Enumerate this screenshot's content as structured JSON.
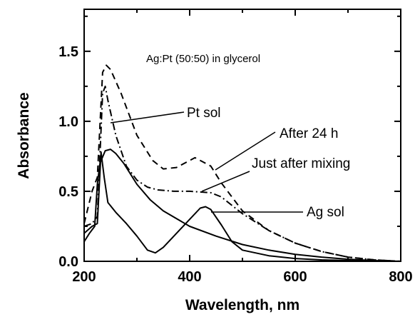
{
  "chart_data": {
    "type": "line",
    "title": "Ag:Pt (50:50) in glycerol",
    "xlabel": "Wavelength, nm",
    "ylabel": "Absorbance",
    "xlim": [
      200,
      800
    ],
    "ylim": [
      0,
      1.8
    ],
    "xticks": [
      "200",
      "400",
      "600",
      "800"
    ],
    "yticks": [
      "0.0",
      "0.5",
      "1.0",
      "1.5"
    ],
    "grid": false,
    "legend": "none",
    "series": [
      {
        "name": "Pt sol",
        "style": "solid",
        "x": [
          200,
          210,
          220,
          225,
          230,
          240,
          250,
          260,
          275,
          300,
          325,
          350,
          400,
          450,
          500,
          550,
          600,
          650,
          700,
          750,
          800
        ],
        "y": [
          0.14,
          0.2,
          0.25,
          0.55,
          0.7,
          0.79,
          0.8,
          0.77,
          0.7,
          0.55,
          0.44,
          0.36,
          0.25,
          0.18,
          0.12,
          0.08,
          0.05,
          0.03,
          0.015,
          0.005,
          0.0
        ]
      },
      {
        "name": "Ag sol",
        "style": "solid",
        "x": [
          200,
          215,
          225,
          232,
          238,
          245,
          260,
          280,
          300,
          320,
          335,
          350,
          375,
          400,
          420,
          430,
          440,
          460,
          480,
          500,
          550,
          600,
          650,
          700,
          750,
          800
        ],
        "y": [
          0.2,
          0.25,
          0.27,
          0.78,
          0.6,
          0.42,
          0.35,
          0.27,
          0.18,
          0.08,
          0.06,
          0.1,
          0.2,
          0.3,
          0.38,
          0.39,
          0.37,
          0.26,
          0.14,
          0.08,
          0.04,
          0.02,
          0.01,
          0.005,
          0.0,
          0.0
        ]
      },
      {
        "name": "After 24 h",
        "style": "dashed",
        "x": [
          200,
          215,
          225,
          235,
          242,
          250,
          270,
          300,
          330,
          350,
          375,
          400,
          410,
          420,
          440,
          460,
          480,
          500,
          550,
          600,
          650,
          700,
          750,
          800
        ],
        "y": [
          0.27,
          0.5,
          0.6,
          1.35,
          1.4,
          1.37,
          1.2,
          0.9,
          0.72,
          0.66,
          0.67,
          0.72,
          0.74,
          0.72,
          0.68,
          0.56,
          0.46,
          0.36,
          0.22,
          0.13,
          0.07,
          0.03,
          0.01,
          0.0
        ]
      },
      {
        "name": "Just after mixing",
        "style": "dashdot",
        "x": [
          200,
          215,
          225,
          235,
          240,
          245,
          260,
          280,
          300,
          320,
          340,
          370,
          400,
          440,
          460,
          480,
          500,
          550,
          600,
          650,
          700,
          750,
          800
        ],
        "y": [
          0.25,
          0.27,
          0.32,
          1.2,
          1.25,
          1.15,
          0.9,
          0.68,
          0.58,
          0.53,
          0.51,
          0.5,
          0.5,
          0.49,
          0.46,
          0.4,
          0.34,
          0.22,
          0.13,
          0.07,
          0.03,
          0.01,
          0.0
        ]
      }
    ],
    "annotations": [
      {
        "text": "Pt sol",
        "target_series": "Pt sol"
      },
      {
        "text": "After 24 h",
        "target_series": "After 24 h"
      },
      {
        "text": "Just after mixing",
        "target_series": "Just after mixing"
      },
      {
        "text": "Ag sol",
        "target_series": "Ag sol"
      }
    ]
  }
}
